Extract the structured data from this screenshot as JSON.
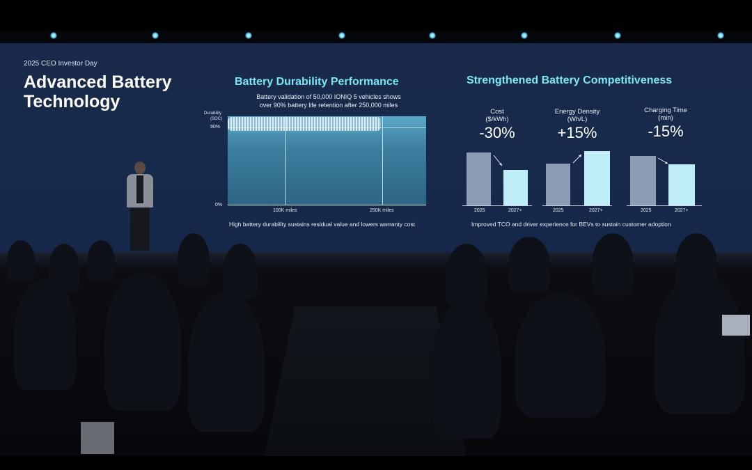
{
  "event": {
    "label": "2025 CEO Investor Day"
  },
  "slide": {
    "title": "Advanced Battery Technology"
  },
  "durability": {
    "title": "Battery Durability Performance",
    "subtitle_line1": "Battery validation of 50,000 IONIQ 5 vehicles shows",
    "subtitle_line2": "over 90% battery life retention after 250,000 miles",
    "ylabel_line1": "Durability",
    "ylabel_line2": "(SOC)",
    "tick_90": "90%",
    "tick_0": "0%",
    "x_tick_1": "100K miles",
    "x_tick_2": "250K miles",
    "footnote": "High battery durability sustains residual value and lowers warranty cost"
  },
  "competitiveness": {
    "title": "Strengthened Battery Competitiveness",
    "footnote": "Improved TCO and driver experience for BEVs to sustain customer adoption",
    "metrics": [
      {
        "label": "Cost",
        "unit": "($/kWh)",
        "change": "-30%",
        "year_a": "2025",
        "year_b": "2027+"
      },
      {
        "label": "Energy Density",
        "unit": "(Wh/L)",
        "change": "+15%",
        "year_a": "2025",
        "year_b": "2027+"
      },
      {
        "label": "Charging Time",
        "unit": "(min)",
        "change": "-15%",
        "year_a": "2025",
        "year_b": "2027+"
      }
    ]
  },
  "colors": {
    "screen": "#172a4b",
    "accent": "#7fe6f5",
    "bar_new": "#bfeef6",
    "bar_old": "#8d9db3"
  }
}
